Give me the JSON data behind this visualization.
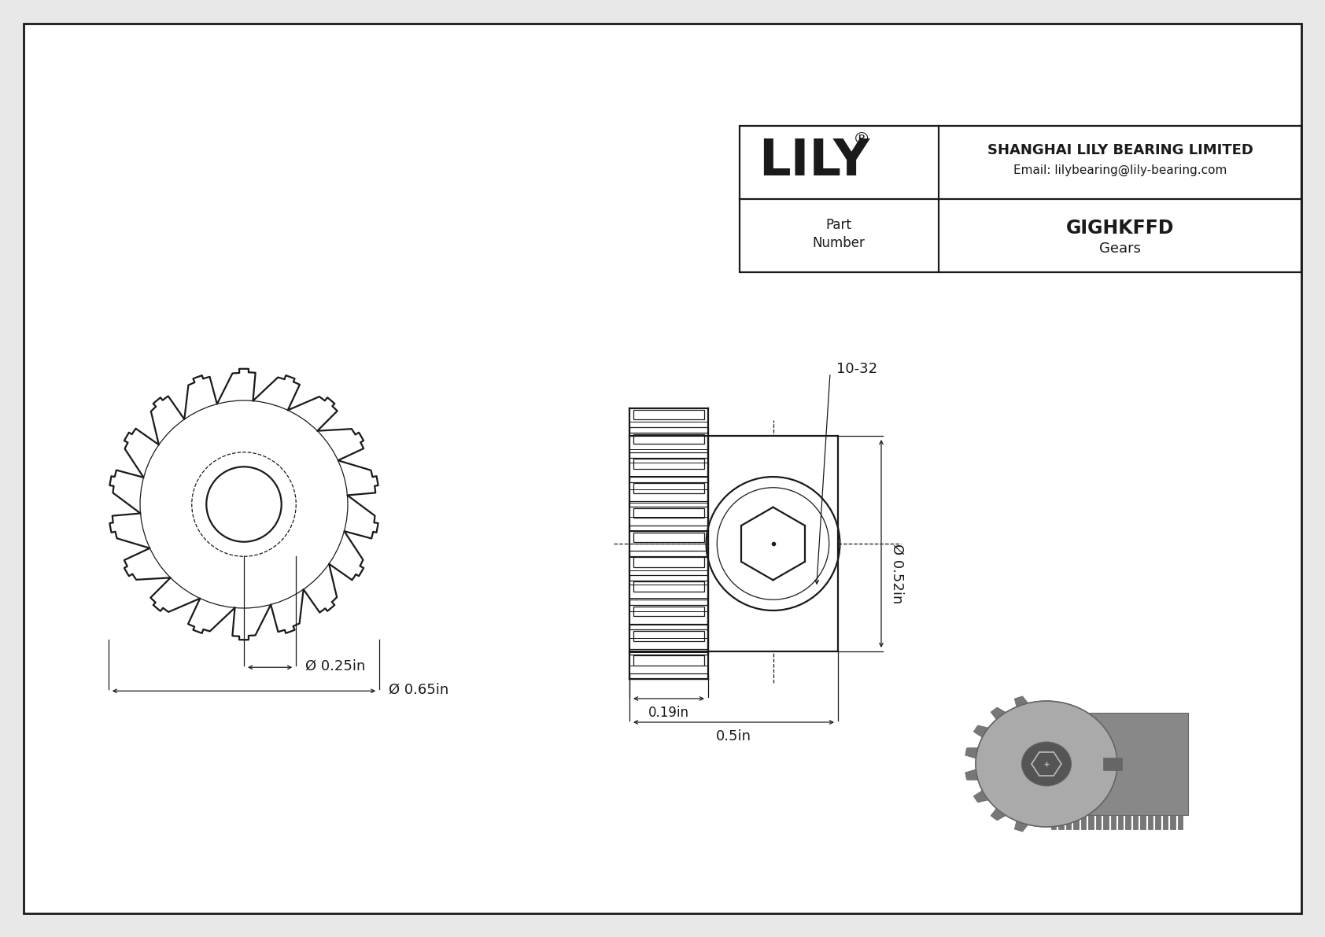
{
  "bg_color": "#e8e8e8",
  "line_color": "#1a1a1a",
  "dim_outer": "Ø 0.65in",
  "dim_hub": "Ø 0.25in",
  "dim_width": "0.5in",
  "dim_hub_width": "0.19in",
  "dim_od": "Ø 0.52in",
  "dim_thread": "10-32",
  "part_number": "GIGHKFFD",
  "category": "Gears",
  "company": "SHANGHAI LILY BEARING LIMITED",
  "email": "Email: lilybearing@lily-bearing.com",
  "logo": "LILY",
  "logo_sup": "®",
  "num_teeth": 18
}
